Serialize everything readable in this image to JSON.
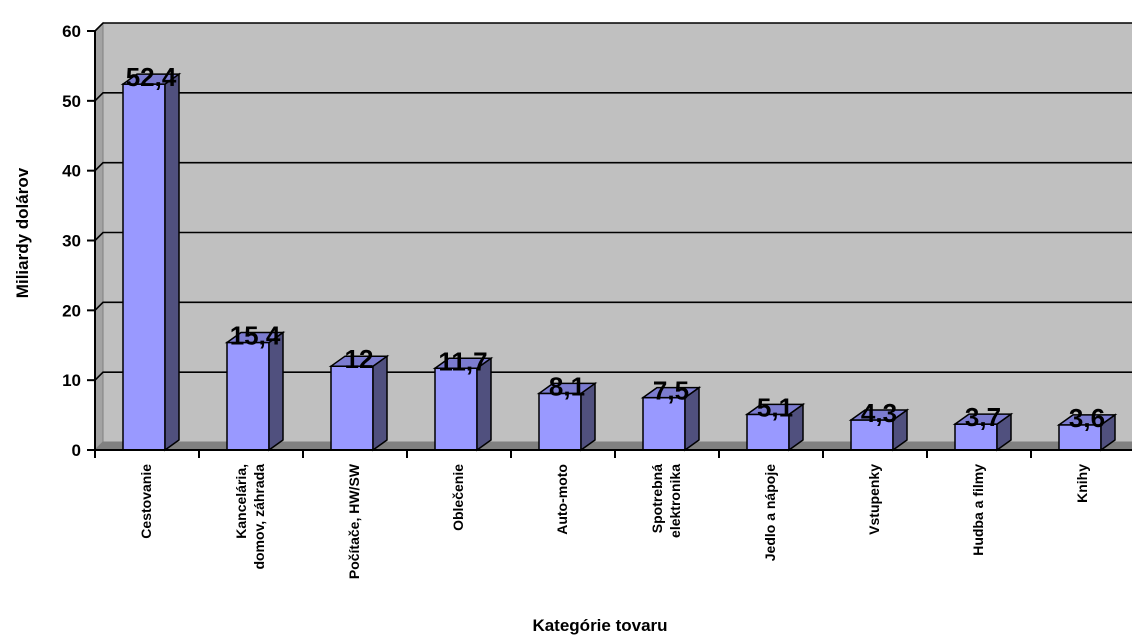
{
  "chart_data": {
    "type": "bar",
    "categories": [
      "Cestovanie",
      "Kancelária,\ndomov, záhrada",
      "Počítače, HW/SW",
      "Oblečenie",
      "Auto-moto",
      "Spotrebná\nelektronika",
      "Jedlo a nápoje",
      "Vstupenky",
      "Hudba a filmy",
      "Knihy"
    ],
    "values": [
      52.4,
      15.4,
      12,
      11.7,
      8.1,
      7.5,
      5.1,
      4.3,
      3.7,
      3.6
    ],
    "data_labels": [
      "52,4",
      "15,4",
      "12",
      "11,7",
      "8,1",
      "7,5",
      "5,1",
      "4,3",
      "3,7",
      "3,6"
    ],
    "title": "",
    "xlabel": "Kategórie tovaru",
    "ylabel": "Miliardy dolárov",
    "ylim": [
      0,
      60
    ],
    "yticks": [
      "0",
      "10",
      "20",
      "30",
      "40",
      "50",
      "60"
    ],
    "grid": true,
    "legend": "none",
    "colors": {
      "bar_front": "#9999ff",
      "bar_side": "#50507e",
      "bar_top": "#7c7cd0",
      "plot_back": "#c0c0c0",
      "plot_side": "#a3a3a3",
      "floor": "#808080",
      "gridline": "#000000"
    }
  }
}
